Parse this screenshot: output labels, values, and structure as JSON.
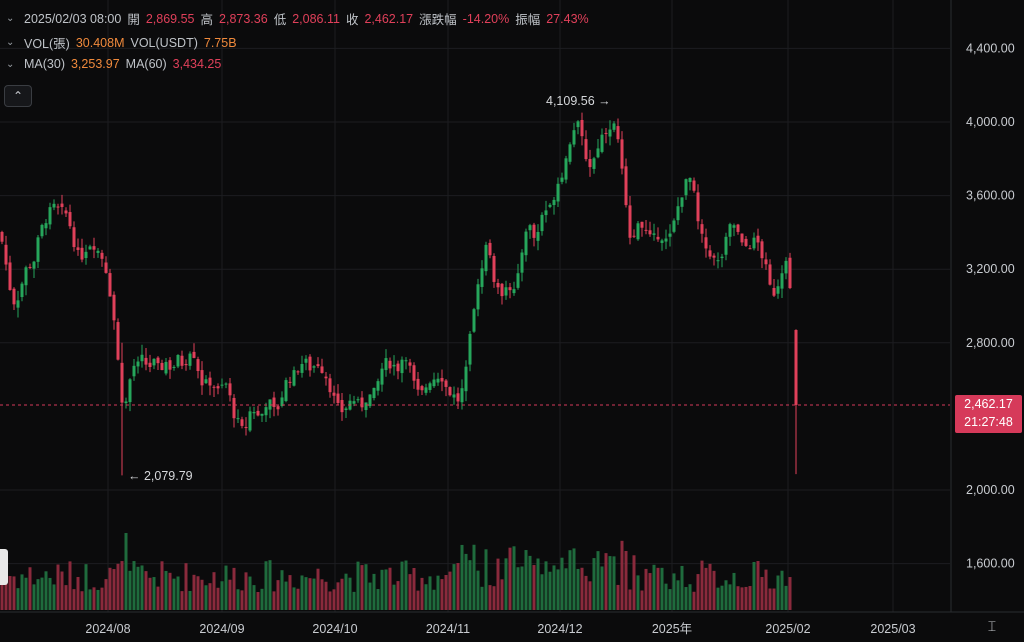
{
  "legend": {
    "row1": {
      "datetime": "2025/02/03 08:00",
      "open_label": "開",
      "open": "2,869.55",
      "high_label": "高",
      "high": "2,873.36",
      "low_label": "低",
      "low": "2,086.11",
      "close_label": "收",
      "close": "2,462.17",
      "change_label": "漲跌幅",
      "change": "-14.20%",
      "amp_label": "振幅",
      "amp": "27.43%"
    },
    "row2": {
      "vol_label": "VOL(張)",
      "vol": "30.408M",
      "vol_usdt_label": "VOL(USDT)",
      "vol_usdt": "7.75B"
    },
    "row3": {
      "ma30_label": "MA(30)",
      "ma30": "3,253.97",
      "ma60_label": "MA(60)",
      "ma60": "3,434.25"
    }
  },
  "price_tag": {
    "price": "2,462.17",
    "countdown": "21:27:48"
  },
  "annotations": {
    "high": "4,109.56",
    "low": "2,079.79"
  },
  "colors": {
    "up": "#26a65b",
    "down": "#e0405a",
    "volume_up": "#1f6b3d",
    "volume_down": "#8a2a3c",
    "background": "#0b0b0c",
    "grid": "#1c1d20"
  },
  "chart_data": {
    "type": "candlestick",
    "y_ticks": [
      "4,400.00",
      "4,000.00",
      "3,600.00",
      "3,200.00",
      "2,800.00",
      "2,000.00",
      "1,600.00"
    ],
    "y_tick_values": [
      4400,
      4000,
      3600,
      3200,
      2800,
      2000,
      1600
    ],
    "ylim": [
      1400,
      4560
    ],
    "x_ticks": [
      "2024/08",
      "2024/09",
      "2024/10",
      "2024/11",
      "2024/12",
      "2025年",
      "2025/02",
      "2025/03"
    ],
    "current_price": 2462.17,
    "max_label": {
      "value": 4109.56,
      "text": "4,109.56"
    },
    "min_label": {
      "value": 2079.79,
      "text": "2,079.79"
    },
    "close_path": [
      [
        0,
        3400
      ],
      [
        4,
        3300
      ],
      [
        8,
        3150
      ],
      [
        12,
        3050
      ],
      [
        16,
        3000
      ],
      [
        20,
        3100
      ],
      [
        24,
        3150
      ],
      [
        28,
        3250
      ],
      [
        32,
        3200
      ],
      [
        36,
        3300
      ],
      [
        40,
        3400
      ],
      [
        44,
        3450
      ],
      [
        48,
        3500
      ],
      [
        52,
        3520
      ],
      [
        56,
        3550
      ],
      [
        60,
        3500
      ],
      [
        64,
        3520
      ],
      [
        68,
        3480
      ],
      [
        72,
        3400
      ],
      [
        76,
        3300
      ],
      [
        80,
        3250
      ],
      [
        84,
        3300
      ],
      [
        88,
        3330
      ],
      [
        92,
        3350
      ],
      [
        96,
        3320
      ],
      [
        100,
        3280
      ],
      [
        104,
        3250
      ],
      [
        108,
        3150
      ],
      [
        112,
        3000
      ],
      [
        116,
        2850
      ],
      [
        120,
        2550
      ],
      [
        124,
        2450
      ],
      [
        128,
        2500
      ],
      [
        132,
        2700
      ],
      [
        136,
        2650
      ],
      [
        140,
        2700
      ],
      [
        144,
        2720
      ],
      [
        148,
        2650
      ],
      [
        152,
        2700
      ],
      [
        156,
        2680
      ],
      [
        160,
        2640
      ],
      [
        164,
        2700
      ],
      [
        168,
        2690
      ],
      [
        172,
        2650
      ],
      [
        176,
        2700
      ],
      [
        180,
        2720
      ],
      [
        184,
        2660
      ],
      [
        188,
        2750
      ],
      [
        192,
        2780
      ],
      [
        196,
        2700
      ],
      [
        200,
        2620
      ],
      [
        204,
        2550
      ],
      [
        208,
        2600
      ],
      [
        212,
        2580
      ],
      [
        216,
        2550
      ],
      [
        220,
        2520
      ],
      [
        224,
        2600
      ],
      [
        228,
        2550
      ],
      [
        232,
        2450
      ],
      [
        236,
        2380
      ],
      [
        240,
        2350
      ],
      [
        244,
        2300
      ],
      [
        248,
        2400
      ],
      [
        252,
        2450
      ],
      [
        256,
        2420
      ],
      [
        260,
        2380
      ],
      [
        264,
        2450
      ],
      [
        268,
        2500
      ],
      [
        272,
        2440
      ],
      [
        276,
        2420
      ],
      [
        280,
        2480
      ],
      [
        284,
        2550
      ],
      [
        288,
        2620
      ],
      [
        292,
        2600
      ],
      [
        296,
        2650
      ],
      [
        300,
        2680
      ],
      [
        304,
        2700
      ],
      [
        308,
        2680
      ],
      [
        312,
        2650
      ],
      [
        316,
        2700
      ],
      [
        320,
        2680
      ],
      [
        324,
        2640
      ],
      [
        328,
        2600
      ],
      [
        332,
        2520
      ],
      [
        336,
        2470
      ],
      [
        340,
        2420
      ],
      [
        344,
        2440
      ],
      [
        348,
        2460
      ],
      [
        352,
        2500
      ],
      [
        356,
        2480
      ],
      [
        360,
        2450
      ],
      [
        364,
        2480
      ],
      [
        368,
        2520
      ],
      [
        372,
        2500
      ],
      [
        376,
        2550
      ],
      [
        380,
        2620
      ],
      [
        384,
        2700
      ],
      [
        388,
        2680
      ],
      [
        392,
        2700
      ],
      [
        396,
        2650
      ],
      [
        400,
        2680
      ],
      [
        404,
        2750
      ],
      [
        408,
        2720
      ],
      [
        412,
        2600
      ],
      [
        416,
        2550
      ],
      [
        420,
        2500
      ],
      [
        424,
        2550
      ],
      [
        428,
        2580
      ],
      [
        432,
        2620
      ],
      [
        436,
        2600
      ],
      [
        440,
        2650
      ],
      [
        444,
        2580
      ],
      [
        448,
        2540
      ],
      [
        452,
        2520
      ],
      [
        456,
        2500
      ],
      [
        460,
        2480
      ],
      [
        464,
        2600
      ],
      [
        468,
        2800
      ],
      [
        472,
        2950
      ],
      [
        476,
        3050
      ],
      [
        480,
        3150
      ],
      [
        484,
        3300
      ],
      [
        488,
        3350
      ],
      [
        492,
        3200
      ],
      [
        496,
        3100
      ],
      [
        500,
        3050
      ],
      [
        504,
        3100
      ],
      [
        508,
        3150
      ],
      [
        512,
        3060
      ],
      [
        516,
        3100
      ],
      [
        520,
        3200
      ],
      [
        524,
        3400
      ],
      [
        528,
        3450
      ],
      [
        532,
        3400
      ],
      [
        536,
        3350
      ],
      [
        540,
        3450
      ],
      [
        544,
        3550
      ],
      [
        548,
        3500
      ],
      [
        552,
        3560
      ],
      [
        556,
        3650
      ],
      [
        560,
        3700
      ],
      [
        564,
        3750
      ],
      [
        568,
        3850
      ],
      [
        572,
        3950
      ],
      [
        576,
        4000
      ],
      [
        580,
        3950
      ],
      [
        584,
        3850
      ],
      [
        588,
        3780
      ],
      [
        592,
        3750
      ],
      [
        596,
        3850
      ],
      [
        600,
        3900
      ],
      [
        604,
        3950
      ],
      [
        608,
        3970
      ],
      [
        612,
        4000
      ],
      [
        616,
        3950
      ],
      [
        620,
        3850
      ],
      [
        624,
        3600
      ],
      [
        628,
        3450
      ],
      [
        632,
        3350
      ],
      [
        636,
        3400
      ],
      [
        640,
        3450
      ],
      [
        644,
        3420
      ],
      [
        648,
        3380
      ],
      [
        652,
        3350
      ],
      [
        656,
        3380
      ],
      [
        660,
        3400
      ],
      [
        664,
        3360
      ],
      [
        668,
        3350
      ],
      [
        672,
        3400
      ],
      [
        676,
        3500
      ],
      [
        680,
        3580
      ],
      [
        684,
        3650
      ],
      [
        688,
        3680
      ],
      [
        692,
        3700
      ],
      [
        696,
        3500
      ],
      [
        700,
        3400
      ],
      [
        704,
        3330
      ],
      [
        708,
        3300
      ],
      [
        712,
        3280
      ],
      [
        716,
        3220
      ],
      [
        720,
        3250
      ],
      [
        724,
        3300
      ],
      [
        728,
        3400
      ],
      [
        732,
        3450
      ],
      [
        736,
        3430
      ],
      [
        740,
        3350
      ],
      [
        744,
        3300
      ],
      [
        748,
        3350
      ],
      [
        752,
        3320
      ],
      [
        756,
        3380
      ],
      [
        760,
        3300
      ],
      [
        764,
        3250
      ],
      [
        768,
        3150
      ],
      [
        772,
        3050
      ],
      [
        776,
        3100
      ],
      [
        780,
        3150
      ],
      [
        784,
        3250
      ],
      [
        788,
        3300
      ],
      [
        792,
        2870
      ],
      [
        796,
        2462
      ]
    ],
    "last_candle": {
      "open": 2869.55,
      "high": 2873.36,
      "low": 2086.11,
      "close": 2462.17
    }
  }
}
